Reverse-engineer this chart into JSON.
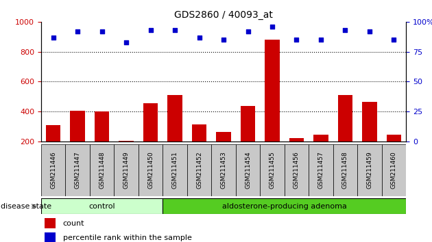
{
  "title": "GDS2860 / 40093_at",
  "samples": [
    "GSM211446",
    "GSM211447",
    "GSM211448",
    "GSM211449",
    "GSM211450",
    "GSM211451",
    "GSM211452",
    "GSM211453",
    "GSM211454",
    "GSM211455",
    "GSM211456",
    "GSM211457",
    "GSM211458",
    "GSM211459",
    "GSM211460"
  ],
  "counts": [
    310,
    405,
    400,
    205,
    455,
    510,
    315,
    265,
    440,
    880,
    225,
    245,
    510,
    465,
    245
  ],
  "percentiles": [
    87,
    92,
    92,
    83,
    93,
    93,
    87,
    85,
    92,
    96,
    85,
    85,
    93,
    92,
    85
  ],
  "bar_color": "#cc0000",
  "dot_color": "#0000cc",
  "ylim_left": [
    200,
    1000
  ],
  "ylim_right": [
    0,
    100
  ],
  "yticks_left": [
    200,
    400,
    600,
    800,
    1000
  ],
  "yticks_right": [
    0,
    25,
    50,
    75,
    100
  ],
  "grid_values": [
    400,
    600,
    800
  ],
  "control_count": 5,
  "adenoma_count": 10,
  "control_label": "control",
  "adenoma_label": "aldosterone-producing adenoma",
  "disease_state_label": "disease state",
  "legend_count_label": "count",
  "legend_pct_label": "percentile rank within the sample",
  "control_color": "#ccffcc",
  "adenoma_color": "#55cc22",
  "xtick_bg_color": "#c8c8c8",
  "bg_color": "#ffffff",
  "tick_label_color_left": "#cc0000",
  "tick_label_color_right": "#0000cc",
  "bar_width": 0.6,
  "figsize": [
    6.3,
    3.54
  ],
  "dpi": 100
}
